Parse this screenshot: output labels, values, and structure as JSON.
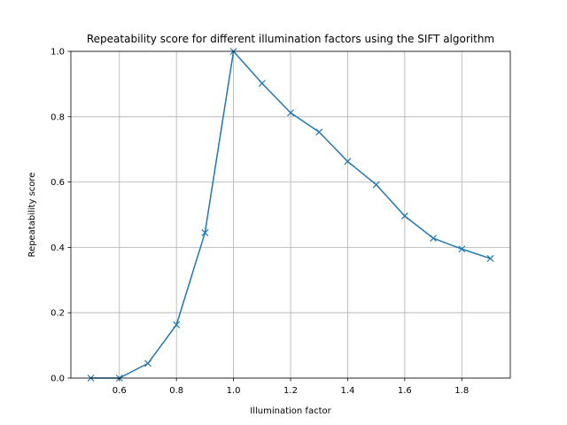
{
  "chart_data": {
    "type": "line",
    "title": "Repeatability score for different illumination factors using the SIFT algorithm",
    "xlabel": "Illumination factor",
    "ylabel": "Repeatability score",
    "xlim": [
      0.43,
      1.97
    ],
    "ylim": [
      0,
      1
    ],
    "xticks": [
      0.6,
      0.8,
      1.0,
      1.2,
      1.4,
      1.6,
      1.8
    ],
    "xtick_labels": [
      "0.6",
      "0.8",
      "1.0",
      "1.2",
      "1.4",
      "1.6",
      "1.8"
    ],
    "yticks": [
      0.0,
      0.2,
      0.4,
      0.6,
      0.8,
      1.0
    ],
    "ytick_labels": [
      "0.0",
      "0.2",
      "0.4",
      "0.6",
      "0.8",
      "1.0"
    ],
    "grid": true,
    "series": [
      {
        "color": "#1f77b4",
        "marker": "x",
        "x": [
          0.5,
          0.6,
          0.7,
          0.8,
          0.9,
          1.0,
          1.1,
          1.2,
          1.3,
          1.4,
          1.5,
          1.6,
          1.7,
          1.8,
          1.9
        ],
        "y": [
          0.0,
          0.0,
          0.045,
          0.163,
          0.445,
          1.0,
          0.902,
          0.812,
          0.753,
          0.663,
          0.592,
          0.496,
          0.428,
          0.395,
          0.366
        ]
      }
    ]
  }
}
